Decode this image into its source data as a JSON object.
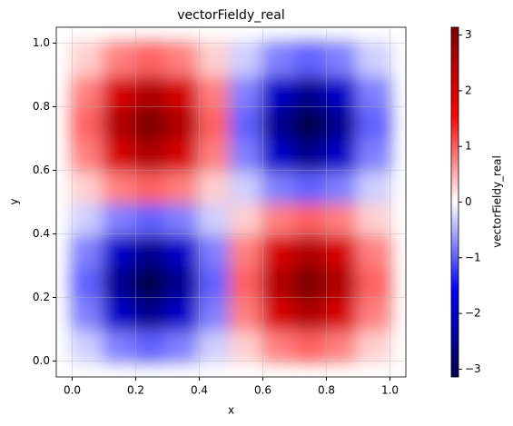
{
  "chart_data": {
    "type": "heatmap",
    "title": "vectorFieldy_real",
    "x_label": "x",
    "y_label": "y",
    "colorbar_label": "vectorFieldy_real",
    "x": [
      0.05,
      0.15,
      0.25,
      0.35,
      0.45,
      0.55,
      0.65,
      0.75,
      0.85,
      0.95
    ],
    "y": [
      0.05,
      0.15,
      0.25,
      0.35,
      0.45,
      0.55,
      0.65,
      0.75,
      0.85,
      0.95
    ],
    "z": [
      [
        -0.3,
        -0.79,
        -0.97,
        -0.79,
        -0.3,
        0.3,
        0.79,
        0.97,
        0.79,
        0.3
      ],
      [
        -0.79,
        -2.06,
        -2.54,
        -2.06,
        -0.79,
        0.79,
        2.06,
        2.54,
        2.06,
        0.79
      ],
      [
        -0.97,
        -2.54,
        -3.14,
        -2.54,
        -0.97,
        0.97,
        2.54,
        3.14,
        2.54,
        0.97
      ],
      [
        -0.79,
        -2.06,
        -2.54,
        -2.06,
        -0.79,
        0.79,
        2.06,
        2.54,
        2.06,
        0.79
      ],
      [
        -0.3,
        -0.79,
        -0.97,
        -0.79,
        -0.3,
        0.3,
        0.79,
        0.97,
        0.79,
        0.3
      ],
      [
        0.3,
        0.79,
        0.97,
        0.79,
        0.3,
        -0.3,
        -0.79,
        -0.97,
        -0.79,
        -0.3
      ],
      [
        0.79,
        2.06,
        2.54,
        2.06,
        0.79,
        -0.79,
        -2.06,
        -2.54,
        -2.06,
        -0.79
      ],
      [
        0.97,
        2.54,
        3.14,
        2.54,
        0.97,
        -0.97,
        -2.54,
        -3.14,
        -2.54,
        -0.97
      ],
      [
        0.79,
        2.06,
        2.54,
        2.06,
        0.79,
        -0.79,
        -2.06,
        -2.54,
        -2.06,
        -0.79
      ],
      [
        0.3,
        0.79,
        0.97,
        0.79,
        0.3,
        -0.3,
        -0.79,
        -0.97,
        -0.79,
        -0.3
      ]
    ],
    "xlim": [
      -0.05,
      1.05
    ],
    "ylim": [
      -0.05,
      1.05
    ],
    "xticks": [
      {
        "value": 0,
        "label": "0.0"
      },
      0.2,
      0.4,
      0.6,
      0.8,
      {
        "value": 1,
        "label": "1.0"
      }
    ],
    "yticks": [
      {
        "value": 0,
        "label": "0.0"
      },
      0.2,
      0.4,
      0.6,
      0.8,
      {
        "value": 1,
        "label": "1.0"
      }
    ],
    "clim": [
      -3.14,
      3.14
    ],
    "cticks": [
      {
        "value": -3,
        "label": "−3"
      },
      {
        "value": -2,
        "label": "−2"
      },
      {
        "value": -1,
        "label": "−1"
      },
      0,
      1,
      2,
      3
    ],
    "colormap": [
      "#00004c",
      "#0000ff",
      "#ffffff",
      "#ff0000",
      "#800000"
    ],
    "grid": true
  }
}
